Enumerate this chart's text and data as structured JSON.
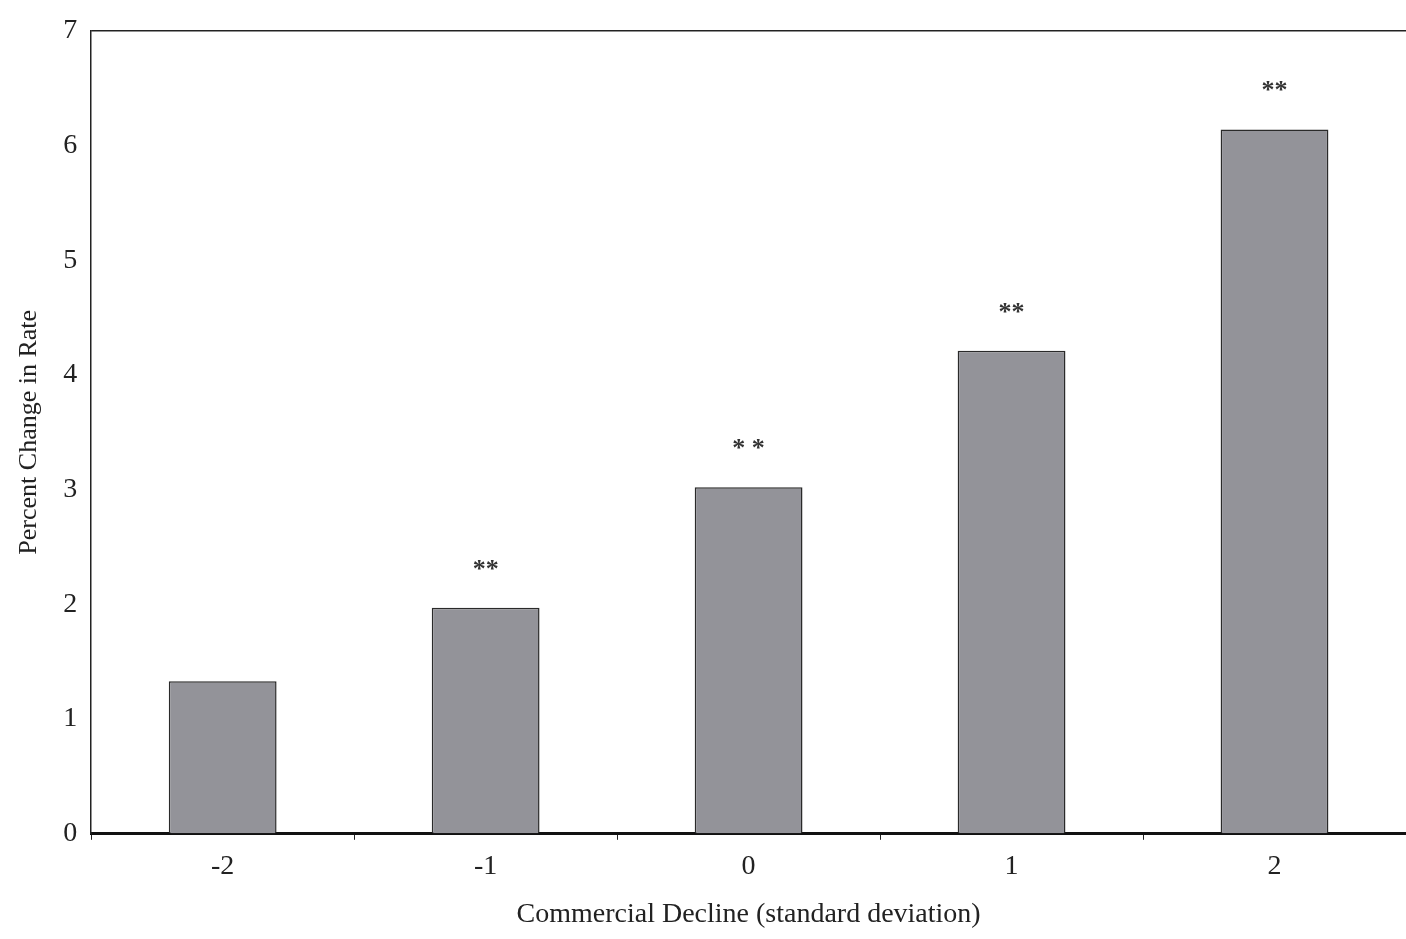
{
  "chart_data": {
    "type": "bar",
    "xlabel": "Commercial Decline (standard deviation)",
    "ylabel": "Percent Change in Rate",
    "categories": [
      "-2",
      "-1",
      "0",
      "1",
      "2"
    ],
    "values": [
      1.33,
      1.97,
      3.02,
      4.21,
      6.14
    ],
    "color": "#939399",
    "ylim": [
      0,
      7
    ],
    "yticks": [
      0,
      1,
      2,
      3,
      4,
      5,
      6,
      7
    ],
    "grid": false,
    "legend": false,
    "value_labels": [
      null,
      "**",
      "* *",
      "**",
      "**"
    ]
  }
}
